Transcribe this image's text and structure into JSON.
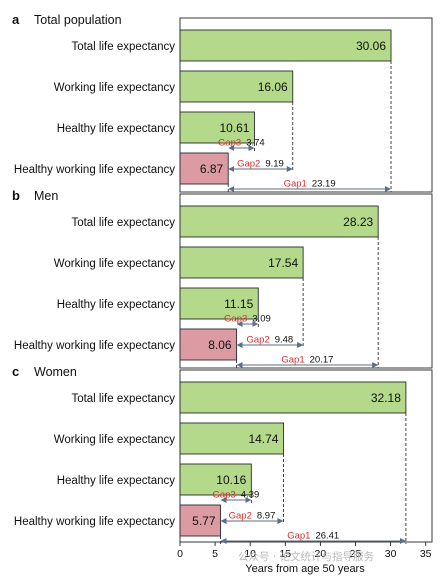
{
  "chart_data": [
    {
      "type": "bar",
      "panel_letter": "a",
      "title": "Total population",
      "categories": [
        "Total life expectancy",
        "Working life expectancy",
        "Healthy life expectancy",
        "Healthy working life expectancy"
      ],
      "values": [
        30.06,
        16.06,
        10.61,
        6.87
      ],
      "value_labels": [
        "30.06",
        "16.06",
        "10.61",
        "6.87"
      ],
      "gaps": [
        {
          "label": "Gap3",
          "value": "3.74",
          "from": 6.87,
          "to": 10.61
        },
        {
          "label": "Gap2",
          "value": "9.19",
          "from": 6.87,
          "to": 16.06
        },
        {
          "label": "Gap1",
          "value": "23.19",
          "from": 6.87,
          "to": 30.06
        }
      ]
    },
    {
      "type": "bar",
      "panel_letter": "b",
      "title": "Men",
      "categories": [
        "Total life expectancy",
        "Working life expectancy",
        "Healthy life expectancy",
        "Healthy working life expectancy"
      ],
      "values": [
        28.23,
        17.54,
        11.15,
        8.06
      ],
      "value_labels": [
        "28.23",
        "17.54",
        "11.15",
        "8.06"
      ],
      "gaps": [
        {
          "label": "Gap3",
          "value": "3.09",
          "from": 8.06,
          "to": 11.15
        },
        {
          "label": "Gap2",
          "value": "9.48",
          "from": 8.06,
          "to": 17.54
        },
        {
          "label": "Gap1",
          "value": "20.17",
          "from": 8.06,
          "to": 28.23
        }
      ]
    },
    {
      "type": "bar",
      "panel_letter": "c",
      "title": "Women",
      "categories": [
        "Total life expectancy",
        "Working life expectancy",
        "Healthy life expectancy",
        "Healthy working life expectancy"
      ],
      "values": [
        32.18,
        14.74,
        10.16,
        5.77
      ],
      "value_labels": [
        "32.18",
        "14.74",
        "10.16",
        "5.77"
      ],
      "gaps": [
        {
          "label": "Gap3",
          "value": "4.39",
          "from": 5.77,
          "to": 10.16
        },
        {
          "label": "Gap2",
          "value": "8.97",
          "from": 5.77,
          "to": 14.74
        },
        {
          "label": "Gap1",
          "value": "26.41",
          "from": 5.77,
          "to": 32.18
        }
      ]
    }
  ],
  "axis": {
    "xlabel": "Years from age 50 years",
    "xlim": [
      0,
      35
    ],
    "ticks": [
      "0",
      "5",
      "10",
      "15",
      "20",
      "25",
      "30",
      "35"
    ]
  },
  "colors": {
    "bar_green": "#b5d98a",
    "bar_pink": "#dc9ba2",
    "gap_label_red": "#d0312d",
    "gap_arrow": "#5a6f86"
  },
  "watermark": "公众号 · 论文统计与指导服务"
}
